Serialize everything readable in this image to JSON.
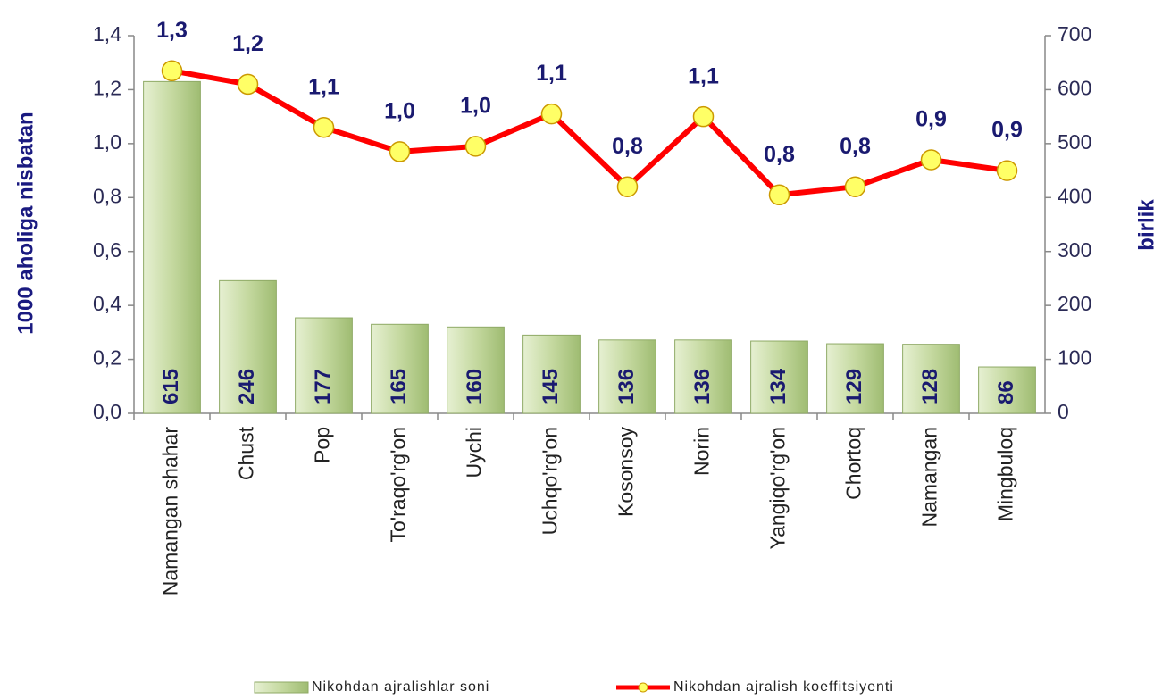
{
  "chart_data": {
    "type": "bar-line",
    "categories": [
      "Namangan shahar",
      "Chust",
      "Pop",
      "To'raqo'rg'on",
      "Uychi",
      "Uchqo'rg'on",
      "Kosonsoy",
      "Norin",
      "Yangiqo'rg'on",
      "Chortoq",
      "Namangan",
      "Mingbuloq"
    ],
    "series": [
      {
        "name": "Nikohdan ajralishlar soni",
        "type": "bar",
        "axis": "y2",
        "color": "#c5d9a0",
        "values": [
          615,
          246,
          177,
          165,
          160,
          145,
          136,
          136,
          134,
          129,
          128,
          86
        ]
      },
      {
        "name": "Nikohdan ajralish koeffitsiyenti",
        "type": "line",
        "axis": "y",
        "color": "#ff0000",
        "marker_color": "#ffff66",
        "values": [
          1.27,
          1.22,
          1.06,
          0.97,
          0.99,
          1.11,
          0.84,
          1.1,
          0.81,
          0.84,
          0.94,
          0.9
        ],
        "value_labels": [
          "1,3",
          "1,2",
          "1,1",
          "1,0",
          "1,0",
          "1,1",
          "0,8",
          "1,1",
          "0,8",
          "0,8",
          "0,9",
          "0,9"
        ]
      }
    ],
    "y_label": "1000 aholiga nisbatan",
    "y2_label": "birlik",
    "ylim": [
      0,
      1.4
    ],
    "yticks": [
      {
        "value": 0,
        "label": "0,0"
      },
      {
        "value": 0.2,
        "label": "0,2"
      },
      {
        "value": 0.4,
        "label": "0,4"
      },
      {
        "value": 0.6,
        "label": "0,6"
      },
      {
        "value": 0.8,
        "label": "0,8"
      },
      {
        "value": 1.0,
        "label": "1,0"
      },
      {
        "value": 1.2,
        "label": "1,2"
      },
      {
        "value": 1.4,
        "label": "1,4"
      }
    ],
    "y2lim": [
      0,
      700
    ],
    "y2ticks": [
      0,
      100,
      200,
      300,
      400,
      500,
      600,
      700
    ],
    "legend": "bottom"
  }
}
